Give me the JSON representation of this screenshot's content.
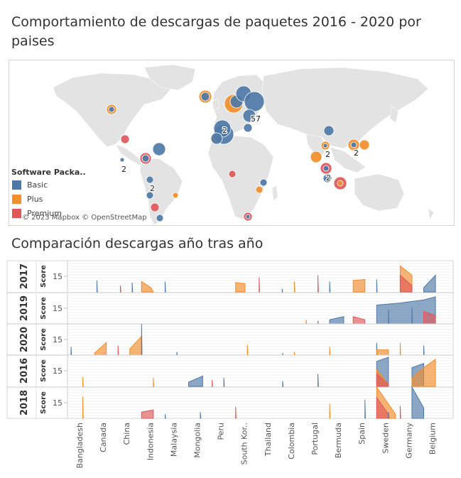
{
  "map": {
    "title": "Comportamiento de descargas de paquetes 2016 - 2020 por paises",
    "attribution": "© 2023 Mapbox © OpenStreetMap",
    "legend_title": "Software Packa..",
    "legend": [
      {
        "label": "Basic",
        "color": "#4e79a7"
      },
      {
        "label": "Plus",
        "color": "#f28e2b"
      },
      {
        "label": "Premium",
        "color": "#e15759"
      }
    ],
    "count_labels": [
      "2",
      "57",
      "2",
      "2",
      "2",
      "2",
      "2"
    ],
    "land_color": "#e3e3e3"
  },
  "chart_data": {
    "type": "area",
    "title": "Comparación descargas año tras año",
    "row_dimension": "year",
    "rows": [
      "2017",
      "2019",
      "2020",
      "2016",
      "2018"
    ],
    "axis_label": "Score",
    "tick_value": 15,
    "y_range": [
      0,
      30
    ],
    "categories": [
      "Bangladesh",
      "Canada",
      "China",
      "Indonesia",
      "Malaysia",
      "Mongolia",
      "Peru",
      "South Kor..",
      "Thailand",
      "Colombia",
      "Portugal",
      "Bermuda",
      "Spain",
      "Sweden",
      "Germany",
      "Belgium"
    ],
    "series_colors": {
      "Basic": "#4e79a7",
      "Plus": "#f28e2b",
      "Premium": "#e15759"
    },
    "marks": {
      "2017": [
        {
          "series": "Basic",
          "points": [
            [
              1.1,
              11
            ],
            [
              1.12,
              0
            ]
          ]
        },
        {
          "series": "Premium",
          "points": [
            [
              2.1,
              6
            ],
            [
              2.12,
              0
            ]
          ]
        },
        {
          "series": "Basic",
          "points": [
            [
              2.6,
              9
            ],
            [
              2.62,
              0
            ]
          ]
        },
        {
          "series": "Plus",
          "points": [
            [
              3.0,
              10
            ],
            [
              3.4,
              4
            ],
            [
              3.5,
              0
            ]
          ]
        },
        {
          "series": "Basic",
          "points": [
            [
              4.0,
              10
            ],
            [
              4.02,
              0
            ]
          ]
        },
        {
          "series": "Plus",
          "points": [
            [
              7.0,
              9
            ],
            [
              7.4,
              8
            ]
          ]
        },
        {
          "series": "Premium",
          "points": [
            [
              8.0,
              14
            ],
            [
              8.02,
              0
            ]
          ]
        },
        {
          "series": "Basic",
          "points": [
            [
              8.98,
              3
            ],
            [
              9.0,
              0
            ]
          ]
        },
        {
          "series": "Plus",
          "points": [
            [
              9.5,
              10
            ],
            [
              9.52,
              0
            ]
          ]
        },
        {
          "series": "Premium",
          "points": [
            [
              10.5,
              16
            ],
            [
              10.52,
              0
            ]
          ]
        },
        {
          "series": "Basic",
          "points": [
            [
              11.0,
              10
            ],
            [
              11.02,
              0
            ]
          ]
        },
        {
          "series": "Plus",
          "points": [
            [
              12.0,
              11
            ],
            [
              12.5,
              12
            ]
          ]
        },
        {
          "series": "Basic",
          "points": [
            [
              13.0,
              12
            ],
            [
              13.02,
              0
            ]
          ]
        },
        {
          "series": "Plus",
          "points": [
            [
              14.0,
              25
            ],
            [
              14.5,
              16
            ]
          ]
        },
        {
          "series": "Premium",
          "points": [
            [
              14.0,
              16
            ],
            [
              14.5,
              6
            ]
          ]
        },
        {
          "series": "Basic",
          "points": [
            [
              15.0,
              4
            ],
            [
              15.5,
              16
            ]
          ]
        }
      ],
      "2019": [
        {
          "series": "Plus",
          "points": [
            [
              10.0,
              4
            ],
            [
              10.02,
              0
            ]
          ]
        },
        {
          "series": "Premium",
          "points": [
            [
              10.5,
              3
            ],
            [
              10.52,
              0
            ]
          ]
        },
        {
          "series": "Basic",
          "points": [
            [
              11.0,
              4
            ],
            [
              11.6,
              7
            ]
          ]
        },
        {
          "series": "Premium",
          "points": [
            [
              12.0,
              7
            ],
            [
              12.5,
              4
            ]
          ]
        },
        {
          "series": "Basic",
          "points": [
            [
              13.0,
              18
            ],
            [
              14.0,
              20
            ],
            [
              15.0,
              23
            ],
            [
              15.5,
              26
            ]
          ]
        },
        {
          "series": "Premium",
          "points": [
            [
              15.0,
              12
            ],
            [
              15.5,
              8
            ]
          ]
        },
        {
          "series": "Basic",
          "points": [
            [
              13.5,
              14
            ],
            [
              13.52,
              0
            ]
          ]
        },
        {
          "series": "Basic",
          "points": [
            [
              14.5,
              16
            ],
            [
              14.52,
              0
            ]
          ]
        }
      ],
      "2020": [
        {
          "series": "Basic",
          "points": [
            [
              0.0,
              8
            ],
            [
              0.02,
              0
            ]
          ]
        },
        {
          "series": "Plus",
          "points": [
            [
              1.0,
              2
            ],
            [
              1.5,
              12
            ]
          ]
        },
        {
          "series": "Premium",
          "points": [
            [
              2.0,
              9
            ],
            [
              2.02,
              0
            ]
          ]
        },
        {
          "series": "Plus",
          "points": [
            [
              2.5,
              6
            ],
            [
              3.0,
              18
            ]
          ]
        },
        {
          "series": "Basic",
          "points": [
            [
              3.0,
              30
            ],
            [
              3.02,
              0
            ]
          ]
        },
        {
          "series": "Basic",
          "points": [
            [
              4.5,
              3
            ],
            [
              4.52,
              0
            ]
          ]
        },
        {
          "series": "Plus",
          "points": [
            [
              7.5,
              10
            ],
            [
              7.52,
              0
            ]
          ]
        },
        {
          "series": "Basic",
          "points": [
            [
              9.0,
              2
            ],
            [
              9.02,
              0
            ]
          ]
        },
        {
          "series": "Plus",
          "points": [
            [
              9.5,
              3
            ],
            [
              9.52,
              0
            ]
          ]
        },
        {
          "series": "Plus",
          "points": [
            [
              11.0,
              8
            ],
            [
              11.02,
              0
            ]
          ]
        },
        {
          "series": "Basic",
          "points": [
            [
              13.0,
              12
            ],
            [
              13.02,
              0
            ]
          ]
        },
        {
          "series": "Plus",
          "points": [
            [
              13.0,
              5
            ],
            [
              13.5,
              5
            ]
          ]
        },
        {
          "series": "Plus",
          "points": [
            [
              14.0,
              12
            ],
            [
              14.02,
              0
            ]
          ]
        },
        {
          "series": "Basic",
          "points": [
            [
              15.0,
              9
            ],
            [
              15.02,
              0
            ]
          ]
        }
      ],
      "2016": [
        {
          "series": "Plus",
          "points": [
            [
              0.5,
              9
            ],
            [
              0.52,
              0
            ]
          ]
        },
        {
          "series": "Plus",
          "points": [
            [
              3.5,
              8
            ],
            [
              3.52,
              0
            ]
          ]
        },
        {
          "series": "Basic",
          "points": [
            [
              5.0,
              4
            ],
            [
              5.6,
              10
            ]
          ]
        },
        {
          "series": "Premium",
          "points": [
            [
              6.0,
              6
            ],
            [
              6.02,
              0
            ]
          ]
        },
        {
          "series": "Basic",
          "points": [
            [
              6.5,
              8
            ],
            [
              6.52,
              0
            ]
          ]
        },
        {
          "series": "Basic",
          "points": [
            [
              9.0,
              5
            ],
            [
              9.02,
              0
            ]
          ]
        },
        {
          "series": "Basic",
          "points": [
            [
              10.5,
              12
            ],
            [
              10.52,
              0
            ]
          ]
        },
        {
          "series": "Basic",
          "points": [
            [
              13.0,
              24
            ],
            [
              13.5,
              28
            ]
          ]
        },
        {
          "series": "Plus",
          "points": [
            [
              13.0,
              16
            ],
            [
              13.5,
              2
            ]
          ]
        },
        {
          "series": "Premium",
          "points": [
            [
              13.0,
              12
            ],
            [
              13.5,
              2
            ]
          ]
        },
        {
          "series": "Basic",
          "points": [
            [
              14.5,
              18
            ],
            [
              15.0,
              22
            ]
          ]
        },
        {
          "series": "Plus",
          "points": [
            [
              14.5,
              8
            ],
            [
              15.0,
              18
            ],
            [
              15.5,
              26
            ]
          ]
        }
      ],
      "2018": [
        {
          "series": "Plus",
          "points": [
            [
              0.5,
              21
            ],
            [
              0.52,
              0
            ]
          ]
        },
        {
          "series": "Premium",
          "points": [
            [
              3.0,
              6
            ],
            [
              3.5,
              8
            ]
          ]
        },
        {
          "series": "Basic",
          "points": [
            [
              4.0,
              4
            ],
            [
              4.02,
              0
            ]
          ]
        },
        {
          "series": "Basic",
          "points": [
            [
              5.5,
              6
            ],
            [
              5.52,
              0
            ]
          ]
        },
        {
          "series": "Premium",
          "points": [
            [
              7.0,
              11
            ],
            [
              7.02,
              0
            ]
          ]
        },
        {
          "series": "Plus",
          "points": [
            [
              11.0,
              14
            ],
            [
              11.02,
              0
            ]
          ]
        },
        {
          "series": "Basic",
          "points": [
            [
              12.5,
              18
            ],
            [
              12.52,
              0
            ]
          ]
        },
        {
          "series": "Plus",
          "points": [
            [
              13.0,
              38
            ],
            [
              13.8,
              4
            ]
          ]
        },
        {
          "series": "Premium",
          "points": [
            [
              13.0,
              20
            ],
            [
              13.5,
              4
            ]
          ]
        },
        {
          "series": "Basic",
          "points": [
            [
              13.5,
              6
            ],
            [
              13.52,
              0
            ]
          ]
        },
        {
          "series": "Premium",
          "points": [
            [
              14.0,
              12
            ],
            [
              14.02,
              0
            ]
          ]
        },
        {
          "series": "Basic",
          "points": [
            [
              14.5,
              34
            ],
            [
              15.0,
              10
            ]
          ]
        }
      ]
    }
  }
}
